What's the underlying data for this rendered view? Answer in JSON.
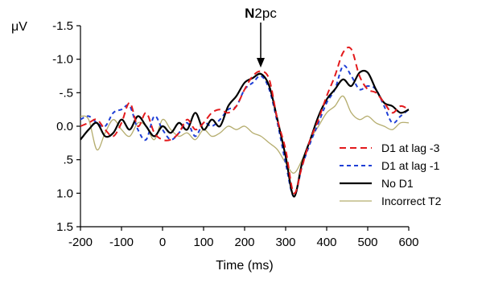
{
  "chart_data": {
    "type": "line",
    "title": "",
    "xlabel": "Time (ms)",
    "ylabel": "μV",
    "xlim": [
      -200,
      600
    ],
    "ylim": [
      -1.5,
      1.5
    ],
    "y_inverted": true,
    "grid": false,
    "legend_position": "right",
    "x_ticks": [
      -200,
      -100,
      0,
      100,
      200,
      300,
      400,
      500,
      600
    ],
    "x_tick_labels": [
      "-200",
      "-100",
      "0",
      "100",
      "200",
      "300",
      "400",
      "500",
      "600"
    ],
    "y_ticks": [
      -1.5,
      -1.0,
      -0.5,
      0.0,
      0.5,
      1.0,
      1.5
    ],
    "y_tick_labels": [
      "-1.5",
      "-1.0",
      "-.5",
      "0.0",
      ".5",
      "1.0",
      "1.5"
    ],
    "annotation": {
      "text_bold": "N",
      "text_rest": "2pc",
      "x": 240,
      "y": -1.55,
      "arrow_to_y": -0.85
    },
    "series": [
      {
        "name": "D1 at lag -3",
        "color": "#e31a1c",
        "dash": "8,5",
        "width": 2,
        "x": [
          -200,
          -180,
          -160,
          -140,
          -120,
          -100,
          -80,
          -60,
          -40,
          -20,
          0,
          20,
          40,
          60,
          80,
          100,
          120,
          140,
          160,
          180,
          200,
          220,
          240,
          260,
          280,
          300,
          320,
          340,
          360,
          380,
          400,
          420,
          440,
          460,
          480,
          500,
          520,
          540,
          560,
          580,
          600
        ],
        "y": [
          0.0,
          -0.05,
          -0.1,
          0.05,
          0.15,
          -0.05,
          -0.35,
          0.0,
          -0.2,
          0.1,
          0.2,
          0.2,
          0.1,
          -0.1,
          0.05,
          -0.05,
          -0.2,
          -0.25,
          -0.2,
          -0.3,
          -0.55,
          -0.75,
          -0.82,
          -0.7,
          -0.1,
          0.35,
          1.0,
          0.6,
          0.2,
          -0.1,
          -0.45,
          -0.75,
          -1.1,
          -1.15,
          -0.75,
          -0.55,
          -0.5,
          -0.35,
          -0.2,
          -0.3,
          -0.25
        ]
      },
      {
        "name": "D1 at lag -1",
        "color": "#1f3fd6",
        "dash": "5,4",
        "width": 2,
        "x": [
          -200,
          -180,
          -160,
          -140,
          -120,
          -100,
          -80,
          -60,
          -40,
          -20,
          0,
          20,
          40,
          60,
          80,
          100,
          120,
          140,
          160,
          180,
          200,
          220,
          240,
          260,
          280,
          300,
          320,
          340,
          360,
          380,
          400,
          420,
          440,
          460,
          480,
          500,
          520,
          540,
          560,
          580,
          600
        ],
        "y": [
          -0.1,
          -0.15,
          -0.05,
          0.0,
          -0.2,
          -0.25,
          -0.3,
          0.05,
          0.2,
          -0.15,
          0.05,
          0.2,
          0.1,
          -0.05,
          0.15,
          -0.05,
          0.0,
          -0.1,
          -0.25,
          -0.3,
          -0.55,
          -0.65,
          -0.75,
          -0.55,
          -0.05,
          0.55,
          1.05,
          0.6,
          0.25,
          -0.05,
          -0.35,
          -0.55,
          -0.9,
          -0.75,
          -0.55,
          -0.6,
          -0.55,
          -0.3,
          -0.05,
          -0.15,
          -0.25
        ]
      },
      {
        "name": "No D1",
        "color": "#000000",
        "dash": "",
        "width": 2.2,
        "x": [
          -200,
          -180,
          -160,
          -140,
          -120,
          -100,
          -80,
          -60,
          -40,
          -20,
          0,
          20,
          40,
          60,
          80,
          100,
          120,
          140,
          160,
          180,
          200,
          220,
          240,
          260,
          280,
          300,
          320,
          340,
          360,
          380,
          400,
          420,
          440,
          460,
          480,
          500,
          520,
          540,
          560,
          580,
          600
        ],
        "y": [
          0.2,
          0.05,
          -0.05,
          0.15,
          0.1,
          -0.1,
          0.05,
          -0.15,
          0.0,
          0.15,
          0.0,
          0.1,
          -0.05,
          0.05,
          -0.2,
          0.05,
          -0.1,
          0.0,
          -0.3,
          -0.45,
          -0.65,
          -0.72,
          -0.78,
          -0.6,
          -0.1,
          0.45,
          1.05,
          0.55,
          0.2,
          -0.15,
          -0.4,
          -0.55,
          -0.7,
          -0.6,
          -0.8,
          -0.8,
          -0.55,
          -0.35,
          -0.3,
          -0.2,
          -0.25
        ]
      },
      {
        "name": "Incorrect T2",
        "color": "#b5ad6e",
        "dash": "",
        "width": 1.3,
        "x": [
          -200,
          -180,
          -160,
          -140,
          -120,
          -100,
          -80,
          -60,
          -40,
          -20,
          0,
          20,
          40,
          60,
          80,
          100,
          120,
          140,
          160,
          180,
          200,
          220,
          240,
          260,
          280,
          300,
          320,
          340,
          360,
          380,
          400,
          420,
          440,
          460,
          480,
          500,
          520,
          540,
          560,
          580,
          600
        ],
        "y": [
          -0.15,
          -0.1,
          0.35,
          0.1,
          -0.1,
          0.05,
          0.15,
          -0.05,
          0.0,
          0.2,
          -0.1,
          0.05,
          0.15,
          0.1,
          0.2,
          0.05,
          0.15,
          0.1,
          0.0,
          0.05,
          0.0,
          0.1,
          0.15,
          0.25,
          0.35,
          0.55,
          0.7,
          0.5,
          0.2,
          0.0,
          -0.2,
          -0.3,
          -0.45,
          -0.2,
          -0.1,
          -0.15,
          -0.05,
          0.0,
          0.05,
          -0.05,
          -0.05
        ]
      }
    ]
  }
}
